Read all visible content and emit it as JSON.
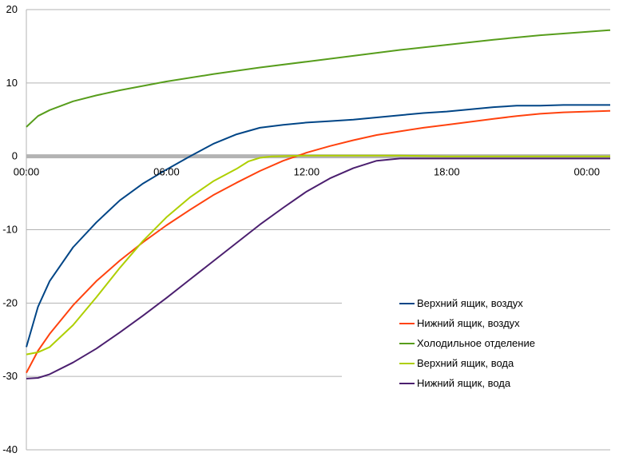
{
  "chart_data": {
    "type": "line",
    "title": "",
    "xlabel": "",
    "ylabel": "",
    "ylim": [
      -40,
      20
    ],
    "yticks": [
      20,
      10,
      0,
      -10,
      -20,
      -30,
      -40
    ],
    "xlim_hours": [
      0,
      25
    ],
    "xticks": [
      {
        "hour": 0,
        "label": "00:00"
      },
      {
        "hour": 6,
        "label": "06:00"
      },
      {
        "hour": 12,
        "label": "12:00"
      },
      {
        "hour": 18,
        "label": "18:00"
      },
      {
        "hour": 24,
        "label": "00:00"
      }
    ],
    "grid": "horizontal",
    "legend_placement": "right",
    "zero_line_color": "#b3b3b3",
    "series": [
      {
        "name": "Верхний ящик, воздух",
        "color": "#004586",
        "points": [
          [
            0,
            -26
          ],
          [
            0.5,
            -20.5
          ],
          [
            1,
            -17
          ],
          [
            2,
            -12.4
          ],
          [
            3,
            -9
          ],
          [
            4,
            -6
          ],
          [
            5,
            -3.7
          ],
          [
            6,
            -1.8
          ],
          [
            7,
            0
          ],
          [
            8,
            1.7
          ],
          [
            9,
            3
          ],
          [
            10,
            3.9
          ],
          [
            11,
            4.3
          ],
          [
            12,
            4.6
          ],
          [
            13,
            4.8
          ],
          [
            14,
            5
          ],
          [
            15,
            5.3
          ],
          [
            16,
            5.6
          ],
          [
            17,
            5.9
          ],
          [
            18,
            6.1
          ],
          [
            19,
            6.4
          ],
          [
            20,
            6.7
          ],
          [
            21,
            6.9
          ],
          [
            22,
            6.9
          ],
          [
            23,
            7
          ],
          [
            25,
            7
          ]
        ]
      },
      {
        "name": "Нижний ящик, воздух",
        "color": "#ff420e",
        "points": [
          [
            0,
            -29.5
          ],
          [
            0.5,
            -26.5
          ],
          [
            1,
            -24.2
          ],
          [
            2,
            -20.3
          ],
          [
            3,
            -17
          ],
          [
            4,
            -14.2
          ],
          [
            5,
            -11.7
          ],
          [
            6,
            -9.4
          ],
          [
            7,
            -7.3
          ],
          [
            8,
            -5.3
          ],
          [
            9,
            -3.6
          ],
          [
            10,
            -2
          ],
          [
            11,
            -0.6
          ],
          [
            12,
            0.5
          ],
          [
            13,
            1.4
          ],
          [
            14,
            2.2
          ],
          [
            15,
            2.9
          ],
          [
            16,
            3.4
          ],
          [
            17,
            3.9
          ],
          [
            18,
            4.3
          ],
          [
            19,
            4.7
          ],
          [
            20,
            5.1
          ],
          [
            21,
            5.5
          ],
          [
            22,
            5.8
          ],
          [
            23,
            6
          ],
          [
            25,
            6.2
          ]
        ]
      },
      {
        "name": "Холодильное отделение",
        "color": "#579d1c",
        "points": [
          [
            0,
            4
          ],
          [
            0.5,
            5.5
          ],
          [
            1,
            6.3
          ],
          [
            2,
            7.5
          ],
          [
            3,
            8.3
          ],
          [
            4,
            9
          ],
          [
            5,
            9.6
          ],
          [
            6,
            10.2
          ],
          [
            8,
            11.2
          ],
          [
            10,
            12.1
          ],
          [
            12,
            12.9
          ],
          [
            14,
            13.7
          ],
          [
            16,
            14.5
          ],
          [
            18,
            15.2
          ],
          [
            20,
            15.9
          ],
          [
            22,
            16.5
          ],
          [
            25,
            17.2
          ]
        ]
      },
      {
        "name": "Верхний ящик, вода",
        "color": "#aecf00",
        "points": [
          [
            0,
            -27
          ],
          [
            0.5,
            -26.7
          ],
          [
            1,
            -26
          ],
          [
            2,
            -23
          ],
          [
            3,
            -19.2
          ],
          [
            4,
            -15.2
          ],
          [
            5,
            -11.5
          ],
          [
            6,
            -8.3
          ],
          [
            7,
            -5.6
          ],
          [
            8,
            -3.4
          ],
          [
            9,
            -1.7
          ],
          [
            9.5,
            -0.7
          ],
          [
            10,
            -0.2
          ],
          [
            10.5,
            0
          ],
          [
            12,
            0.1
          ],
          [
            14,
            0.1
          ],
          [
            16,
            0.1
          ],
          [
            18,
            0
          ],
          [
            20,
            0
          ],
          [
            22,
            0
          ],
          [
            25,
            0
          ]
        ]
      },
      {
        "name": "Нижний ящик, вода",
        "color": "#4b1f6f",
        "points": [
          [
            0,
            -30.3
          ],
          [
            0.5,
            -30.2
          ],
          [
            1,
            -29.7
          ],
          [
            2,
            -28.1
          ],
          [
            3,
            -26.2
          ],
          [
            4,
            -24
          ],
          [
            5,
            -21.7
          ],
          [
            6,
            -19.3
          ],
          [
            7,
            -16.8
          ],
          [
            8,
            -14.3
          ],
          [
            9,
            -11.8
          ],
          [
            10,
            -9.3
          ],
          [
            11,
            -7
          ],
          [
            12,
            -4.8
          ],
          [
            13,
            -3
          ],
          [
            14,
            -1.6
          ],
          [
            15,
            -0.6
          ],
          [
            16,
            -0.3
          ],
          [
            18,
            -0.3
          ],
          [
            20,
            -0.3
          ],
          [
            22,
            -0.3
          ],
          [
            25,
            -0.3
          ]
        ]
      }
    ]
  }
}
